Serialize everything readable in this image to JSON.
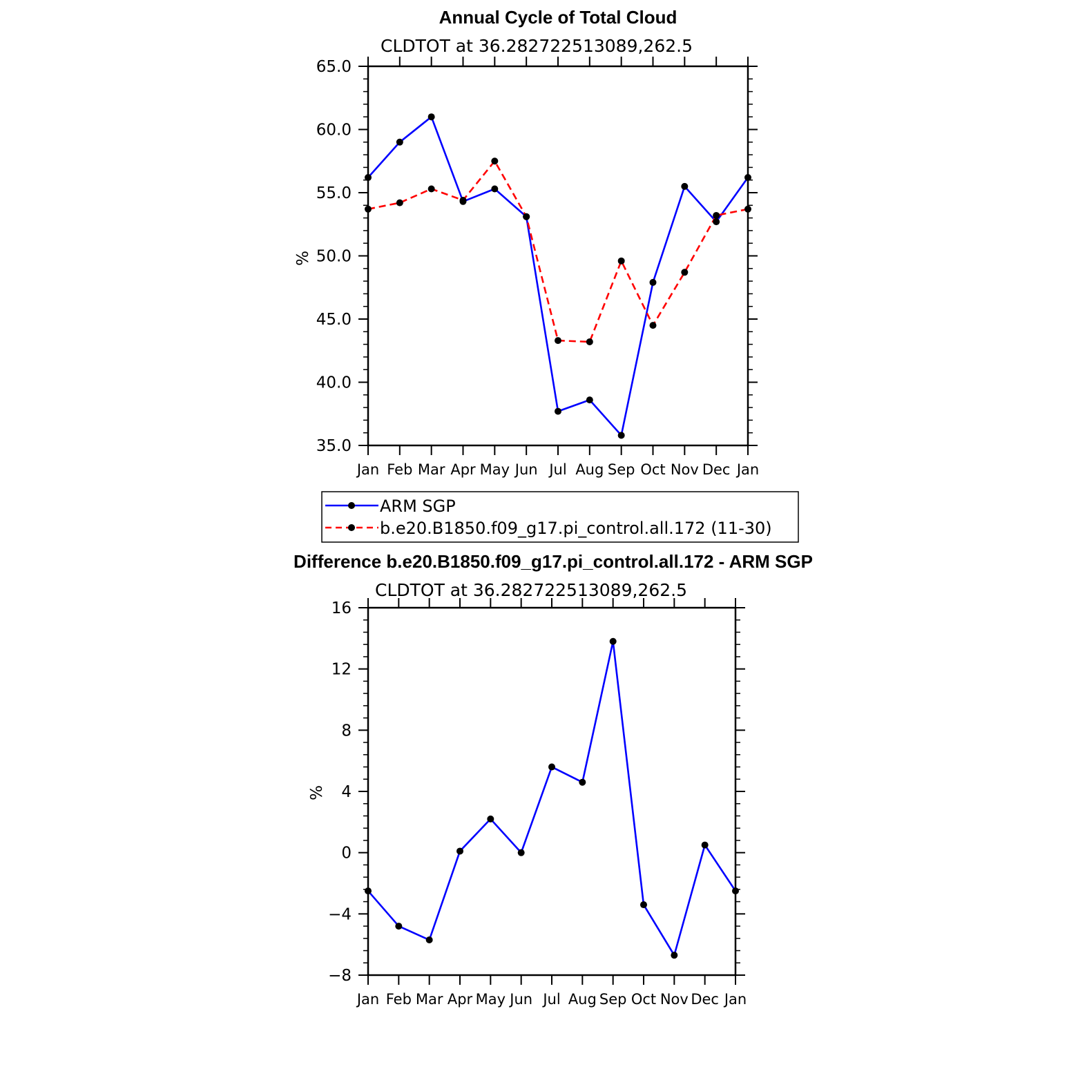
{
  "chart_data": [
    {
      "type": "line",
      "title": "Annual Cycle of Total Cloud",
      "subtitle": "CLDTOT at 36.282722513089,262.5",
      "ylabel": "%",
      "ylim": [
        35.0,
        65.0
      ],
      "yticks": [
        "35.0",
        "40.0",
        "45.0",
        "50.0",
        "55.0",
        "60.0",
        "65.0"
      ],
      "categories": [
        "Jan",
        "Feb",
        "Mar",
        "Apr",
        "May",
        "Jun",
        "Jul",
        "Aug",
        "Sep",
        "Oct",
        "Nov",
        "Dec",
        "Jan"
      ],
      "series": [
        {
          "name": "ARM SGP",
          "color": "#0000ff",
          "dash": "solid",
          "values": [
            56.2,
            59.0,
            61.0,
            54.3,
            55.3,
            53.1,
            37.7,
            38.6,
            35.8,
            47.9,
            55.5,
            52.7,
            56.2
          ]
        },
        {
          "name": "b.e20.B1850.f09_g17.pi_control.all.172 (11-30)",
          "color": "#ff0000",
          "dash": "dashed",
          "values": [
            53.7,
            54.2,
            55.3,
            54.4,
            57.5,
            53.1,
            43.3,
            43.2,
            49.6,
            44.5,
            48.7,
            53.2,
            53.7
          ]
        }
      ],
      "legend": {
        "placement": "bottom"
      },
      "grid": false
    },
    {
      "type": "line",
      "title": "Difference b.e20.B1850.f09_g17.pi_control.all.172 - ARM SGP",
      "subtitle": "CLDTOT at 36.282722513089,262.5",
      "ylabel": "%",
      "ylim": [
        -8,
        16
      ],
      "yticks": [
        "−8",
        "−4",
        "0",
        "4",
        "8",
        "12",
        "16"
      ],
      "categories": [
        "Jan",
        "Feb",
        "Mar",
        "Apr",
        "May",
        "Jun",
        "Jul",
        "Aug",
        "Sep",
        "Oct",
        "Nov",
        "Dec",
        "Jan"
      ],
      "series": [
        {
          "color": "#0000ff",
          "dash": "solid",
          "values": [
            -2.5,
            -4.8,
            -5.7,
            0.1,
            2.2,
            0.0,
            5.6,
            4.6,
            13.8,
            -3.4,
            -6.7,
            0.5,
            -2.5
          ]
        }
      ],
      "grid": false
    }
  ]
}
